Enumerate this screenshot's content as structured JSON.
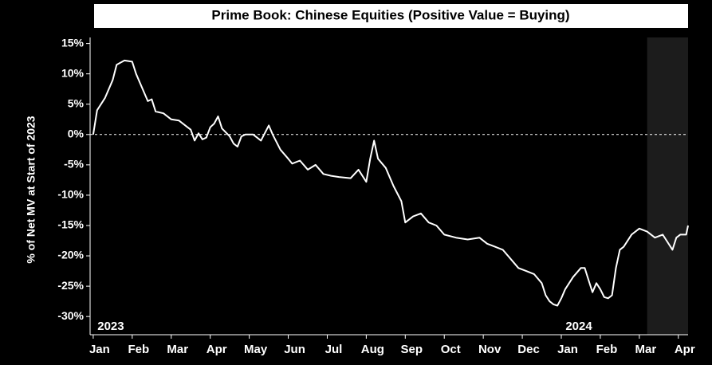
{
  "chart_data": {
    "type": "line",
    "title": "Prime Book: Chinese Equities (Positive Value = Buying)",
    "y_label": "% of Net MV at Start of 2023",
    "annotations": [
      {
        "text": "2023",
        "x": 0.45
      },
      {
        "text": "2024",
        "x": 12.45
      }
    ],
    "reference_line": 0,
    "shade_from": 14.2,
    "xlim": [
      -0.08,
      15.25
    ],
    "ylim": [
      -33,
      16
    ],
    "xticks": [
      {
        "value": 0,
        "label": "Jan"
      },
      {
        "value": 1,
        "label": "Feb"
      },
      {
        "value": 2,
        "label": "Mar"
      },
      {
        "value": 3,
        "label": "Apr"
      },
      {
        "value": 4,
        "label": "May"
      },
      {
        "value": 5,
        "label": "Jun"
      },
      {
        "value": 6,
        "label": "Jul"
      },
      {
        "value": 7,
        "label": "Aug"
      },
      {
        "value": 8,
        "label": "Sep"
      },
      {
        "value": 9,
        "label": "Oct"
      },
      {
        "value": 10,
        "label": "Nov"
      },
      {
        "value": 11,
        "label": "Dec"
      },
      {
        "value": 12,
        "label": "Jan"
      },
      {
        "value": 13,
        "label": "Feb"
      },
      {
        "value": 14,
        "label": "Mar"
      },
      {
        "value": 15,
        "label": "Apr"
      }
    ],
    "yticks": [
      {
        "value": 15,
        "label": "15%"
      },
      {
        "value": 10,
        "label": "10%"
      },
      {
        "value": 5,
        "label": "5%"
      },
      {
        "value": 0,
        "label": "0%"
      },
      {
        "value": -5,
        "label": "-5%"
      },
      {
        "value": -10,
        "label": "-10%"
      },
      {
        "value": -15,
        "label": "-15%"
      },
      {
        "value": -20,
        "label": "-20%"
      },
      {
        "value": -25,
        "label": "-25%"
      },
      {
        "value": -30,
        "label": "-30%"
      }
    ],
    "x": [
      0,
      0.1,
      0.3,
      0.5,
      0.6,
      0.8,
      1.0,
      1.1,
      1.3,
      1.4,
      1.5,
      1.6,
      1.8,
      2.0,
      2.2,
      2.4,
      2.5,
      2.6,
      2.7,
      2.8,
      2.9,
      3.0,
      3.1,
      3.2,
      3.3,
      3.5,
      3.6,
      3.7,
      3.8,
      3.9,
      4.1,
      4.3,
      4.5,
      4.6,
      4.8,
      5.0,
      5.1,
      5.3,
      5.5,
      5.7,
      5.9,
      6.1,
      6.3,
      6.6,
      6.8,
      7.0,
      7.1,
      7.2,
      7.3,
      7.5,
      7.7,
      7.9,
      8.0,
      8.2,
      8.4,
      8.6,
      8.8,
      9.0,
      9.3,
      9.6,
      9.9,
      10.1,
      10.3,
      10.5,
      10.7,
      10.9,
      11.1,
      11.3,
      11.5,
      11.6,
      11.7,
      11.8,
      11.9,
      12.0,
      12.1,
      12.3,
      12.5,
      12.6,
      12.7,
      12.8,
      12.9,
      13.0,
      13.1,
      13.2,
      13.3,
      13.4,
      13.5,
      13.6,
      13.8,
      14.0,
      14.2,
      14.4,
      14.6,
      14.7,
      14.85,
      14.95,
      15.05,
      15.2,
      15.25
    ],
    "series": [
      {
        "name": "Prime Book",
        "color": "#ffffff",
        "values": [
          0,
          4,
          6,
          9,
          11.5,
          12.2,
          12,
          10,
          7,
          5.5,
          5.8,
          3.8,
          3.5,
          2.5,
          2.3,
          1.3,
          0.8,
          -1,
          0.2,
          -0.8,
          -0.5,
          1.2,
          1.8,
          3,
          1,
          -0.3,
          -1.5,
          -2,
          -0.3,
          0,
          0,
          -1,
          1.5,
          0,
          -2.5,
          -4,
          -4.8,
          -4.3,
          -5.8,
          -5,
          -6.5,
          -6.8,
          -7,
          -7.2,
          -5.8,
          -7.8,
          -4,
          -1,
          -4,
          -5.5,
          -8.5,
          -11,
          -14.5,
          -13.5,
          -13,
          -14.5,
          -15,
          -16.5,
          -17,
          -17.3,
          -17,
          -18,
          -18.5,
          -19,
          -20.5,
          -22,
          -22.5,
          -23,
          -24.5,
          -26.5,
          -27.5,
          -28,
          -28.2,
          -27,
          -25.5,
          -23.5,
          -22,
          -22,
          -24,
          -26,
          -24.5,
          -25.5,
          -26.8,
          -27,
          -26.5,
          -22,
          -19,
          -18.5,
          -16.5,
          -15.5,
          -16,
          -17,
          -16.5,
          -17.5,
          -19,
          -17,
          -16.5,
          -16.5,
          -15
        ]
      }
    ]
  }
}
